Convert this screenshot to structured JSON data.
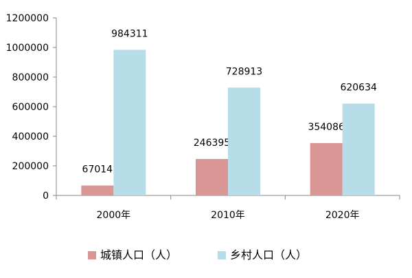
{
  "chart_data": {
    "type": "bar",
    "title": "",
    "xlabel": "",
    "ylabel": "",
    "categories": [
      "2000年",
      "2010年",
      "2020年"
    ],
    "series": [
      {
        "name": "城镇人口（人）",
        "values": [
          67014,
          246395,
          354086
        ],
        "color": "#d99694"
      },
      {
        "name": "乡村人口（人）",
        "values": [
          984311,
          728913,
          620634
        ],
        "color": "#b7dee8"
      }
    ],
    "ylim": [
      0,
      1200000
    ],
    "y_ticks": [
      0,
      200000,
      400000,
      600000,
      800000,
      1000000,
      1200000
    ],
    "y_tick_labels": [
      "0",
      "200000",
      "400000",
      "600000",
      "800000",
      "1000000",
      "1200000"
    ],
    "data_labels": true,
    "grid": false,
    "legend_position": "bottom",
    "colors": {
      "axis": "#868686",
      "text": "#000000"
    }
  }
}
